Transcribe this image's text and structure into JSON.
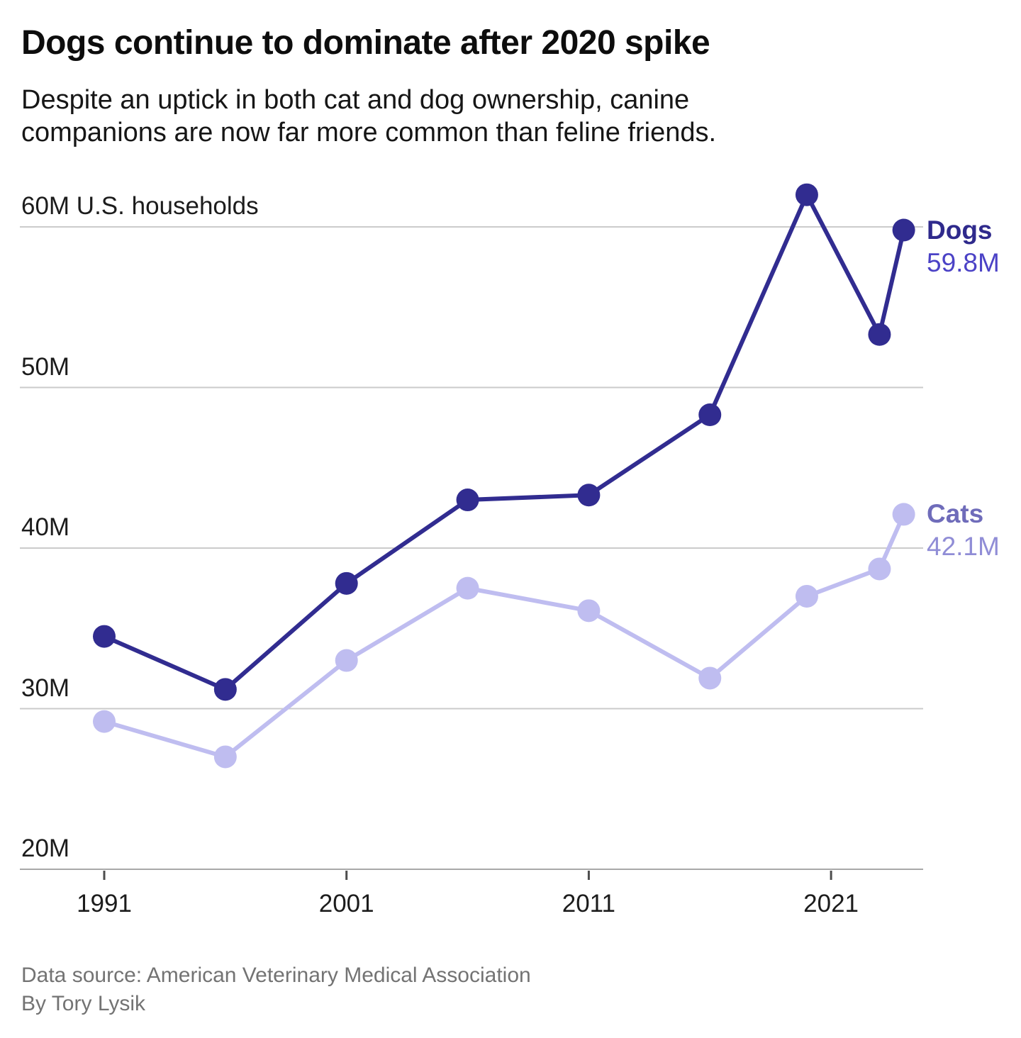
{
  "header": {
    "title": "Dogs continue to dominate after 2020 spike",
    "subtitle_lines": [
      "Despite an uptick in both cat and dog ownership, canine",
      "companions are now far more common than feline friends."
    ]
  },
  "footer": {
    "source": "Data source: American Veterinary Medical Association",
    "byline": "By Tory Lysik"
  },
  "colors": {
    "dogs": "#312c90",
    "cats": "#bfbdf0",
    "gridline": "#cbcbcb",
    "axis_line": "#a8a8a8",
    "tick": "#4d4d4d",
    "text": "#1c1c1c",
    "muted_text": "#737373"
  },
  "chart_data": {
    "type": "line",
    "x": [
      1991,
      1996,
      2001,
      2006,
      2011,
      2016,
      2020,
      2023,
      2024
    ],
    "series": [
      {
        "name": "Dogs",
        "end_label": "59.8M",
        "color": "#312c90",
        "label_color": "#2f2a8c",
        "value_color": "#4b42c6",
        "values": [
          34.5,
          31.2,
          37.8,
          43.0,
          43.3,
          48.3,
          62.0,
          53.3,
          59.8
        ]
      },
      {
        "name": "Cats",
        "end_label": "42.1M",
        "color": "#bfbdf0",
        "label_color": "#6f6cba",
        "value_color": "#908dd6",
        "values": [
          29.2,
          27.0,
          33.0,
          37.5,
          36.1,
          31.9,
          37.0,
          38.7,
          42.1
        ]
      }
    ],
    "y_ticks": [
      {
        "value": 60,
        "label": "60M U.S. households"
      },
      {
        "value": 50,
        "label": "50M"
      },
      {
        "value": 40,
        "label": "40M"
      },
      {
        "value": 30,
        "label": "30M"
      },
      {
        "value": 20,
        "label": "20M"
      }
    ],
    "x_ticks": [
      {
        "value": 1991,
        "label": "1991"
      },
      {
        "value": 2001,
        "label": "2001"
      },
      {
        "value": 2011,
        "label": "2011"
      },
      {
        "value": 2021,
        "label": "2021"
      }
    ],
    "ylabel": "U.S. households",
    "ylim": [
      20,
      63
    ],
    "xlim": [
      1987.5,
      2024.8
    ],
    "grid": true,
    "legend_position": "end-labels-right"
  }
}
